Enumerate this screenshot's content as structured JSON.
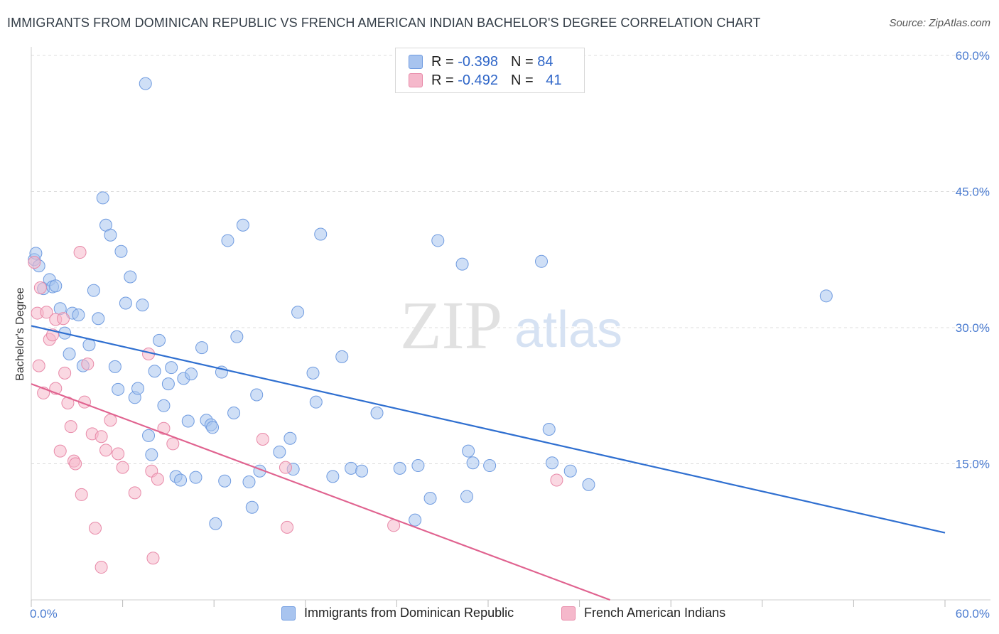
{
  "title": "IMMIGRANTS FROM DOMINICAN REPUBLIC VS FRENCH AMERICAN INDIAN BACHELOR'S DEGREE CORRELATION CHART",
  "source": "Source: ZipAtlas.com",
  "watermark": {
    "zip": "ZIP",
    "atlas": "atlas"
  },
  "legend": {
    "rows": [
      {
        "r_label": "R = ",
        "r_value": "-0.398",
        "n_label": "N = ",
        "n_value": "84",
        "color": "#a8c4ef"
      },
      {
        "r_label": "R = ",
        "r_value": "-0.492",
        "n_label": "N = ",
        "n_value": "41",
        "color": "#f5b8cb"
      }
    ]
  },
  "bottom_legend": {
    "series1": "Immigrants from Dominican Republic",
    "series2": "French American Indians"
  },
  "chart_data": {
    "type": "scatter",
    "ylabel": "Bachelor's Degree",
    "xlim": [
      0,
      60
    ],
    "ylim": [
      0,
      60
    ],
    "x_tick_labels": [
      "0.0%",
      "60.0%"
    ],
    "y_tick_labels": [
      "15.0%",
      "30.0%",
      "45.0%",
      "60.0%"
    ],
    "y_ticks": [
      15,
      30,
      45,
      60
    ],
    "grid": "horizontal dashed",
    "legend_position": "top-center",
    "series": [
      {
        "name": "Immigrants from Dominican Republic",
        "color": "#a8c4ef",
        "edge": "#6f9be0",
        "line_color": "#2f6fd0",
        "trend": [
          [
            0,
            30.2
          ],
          [
            60,
            7.4
          ]
        ],
        "points": [
          [
            0.2,
            37.5
          ],
          [
            0.3,
            38.2
          ],
          [
            0.5,
            36.8
          ],
          [
            0.8,
            34.3
          ],
          [
            1.2,
            35.3
          ],
          [
            1.4,
            34.5
          ],
          [
            1.6,
            34.6
          ],
          [
            1.9,
            32.1
          ],
          [
            2.2,
            29.4
          ],
          [
            2.5,
            27.1
          ],
          [
            2.7,
            31.6
          ],
          [
            3.1,
            31.4
          ],
          [
            3.4,
            25.8
          ],
          [
            3.8,
            28.1
          ],
          [
            4.1,
            34.1
          ],
          [
            4.4,
            31.0
          ],
          [
            4.7,
            44.3
          ],
          [
            4.9,
            41.3
          ],
          [
            5.2,
            40.2
          ],
          [
            5.5,
            25.7
          ],
          [
            5.7,
            23.2
          ],
          [
            5.9,
            38.4
          ],
          [
            6.2,
            32.7
          ],
          [
            6.5,
            35.6
          ],
          [
            6.8,
            22.3
          ],
          [
            7.0,
            23.3
          ],
          [
            7.3,
            32.5
          ],
          [
            7.5,
            56.9
          ],
          [
            7.7,
            18.1
          ],
          [
            7.9,
            16.0
          ],
          [
            8.1,
            25.2
          ],
          [
            8.4,
            28.6
          ],
          [
            8.7,
            21.4
          ],
          [
            9.0,
            23.8
          ],
          [
            9.2,
            25.6
          ],
          [
            9.5,
            13.6
          ],
          [
            9.8,
            13.2
          ],
          [
            10.0,
            24.4
          ],
          [
            10.3,
            19.7
          ],
          [
            10.5,
            24.9
          ],
          [
            10.8,
            13.5
          ],
          [
            11.2,
            27.8
          ],
          [
            11.5,
            19.8
          ],
          [
            11.8,
            19.3
          ],
          [
            11.9,
            19.0
          ],
          [
            12.1,
            8.4
          ],
          [
            12.5,
            25.1
          ],
          [
            12.7,
            13.1
          ],
          [
            12.9,
            39.6
          ],
          [
            13.3,
            20.6
          ],
          [
            13.5,
            29.0
          ],
          [
            13.9,
            41.3
          ],
          [
            14.3,
            13.0
          ],
          [
            14.5,
            10.2
          ],
          [
            14.8,
            22.6
          ],
          [
            15.0,
            14.2
          ],
          [
            16.3,
            16.3
          ],
          [
            17.0,
            17.8
          ],
          [
            17.2,
            14.4
          ],
          [
            17.5,
            31.7
          ],
          [
            18.5,
            25.0
          ],
          [
            18.7,
            21.8
          ],
          [
            19.0,
            40.3
          ],
          [
            19.8,
            13.6
          ],
          [
            20.4,
            26.8
          ],
          [
            21.0,
            14.5
          ],
          [
            21.7,
            14.2
          ],
          [
            22.7,
            20.6
          ],
          [
            24.2,
            14.5
          ],
          [
            25.2,
            8.8
          ],
          [
            25.4,
            14.8
          ],
          [
            26.2,
            11.2
          ],
          [
            26.7,
            39.6
          ],
          [
            28.3,
            37.0
          ],
          [
            28.6,
            11.4
          ],
          [
            28.7,
            16.4
          ],
          [
            29.0,
            15.1
          ],
          [
            30.1,
            14.8
          ],
          [
            33.5,
            37.3
          ],
          [
            34.0,
            18.8
          ],
          [
            34.2,
            15.1
          ],
          [
            35.4,
            14.2
          ],
          [
            36.6,
            12.7
          ],
          [
            52.2,
            33.5
          ]
        ]
      },
      {
        "name": "French American Indians",
        "color": "#f5b8cb",
        "edge": "#e889a8",
        "line_color": "#e0628f",
        "trend": [
          [
            0,
            23.8
          ],
          [
            38,
            0
          ]
        ],
        "points": [
          [
            0.2,
            37.2
          ],
          [
            0.4,
            31.6
          ],
          [
            0.5,
            25.8
          ],
          [
            0.6,
            34.4
          ],
          [
            0.8,
            22.8
          ],
          [
            1.0,
            31.7
          ],
          [
            1.2,
            28.7
          ],
          [
            1.4,
            29.2
          ],
          [
            1.6,
            30.9
          ],
          [
            1.6,
            23.3
          ],
          [
            1.9,
            16.4
          ],
          [
            2.1,
            31.0
          ],
          [
            2.2,
            25.0
          ],
          [
            2.4,
            21.7
          ],
          [
            2.6,
            19.1
          ],
          [
            2.8,
            15.3
          ],
          [
            2.9,
            15.0
          ],
          [
            3.2,
            38.3
          ],
          [
            3.3,
            11.6
          ],
          [
            3.5,
            21.8
          ],
          [
            3.7,
            26.0
          ],
          [
            4.0,
            18.3
          ],
          [
            4.2,
            7.9
          ],
          [
            4.6,
            18.0
          ],
          [
            4.6,
            3.6
          ],
          [
            4.9,
            16.5
          ],
          [
            5.2,
            19.8
          ],
          [
            5.7,
            16.1
          ],
          [
            6.0,
            14.6
          ],
          [
            6.8,
            11.8
          ],
          [
            7.7,
            27.1
          ],
          [
            7.9,
            14.2
          ],
          [
            8.0,
            4.6
          ],
          [
            8.3,
            13.3
          ],
          [
            8.7,
            18.9
          ],
          [
            9.3,
            17.2
          ],
          [
            15.2,
            17.7
          ],
          [
            16.7,
            14.6
          ],
          [
            16.8,
            8.0
          ],
          [
            23.8,
            8.2
          ],
          [
            34.5,
            13.2
          ]
        ]
      }
    ]
  }
}
